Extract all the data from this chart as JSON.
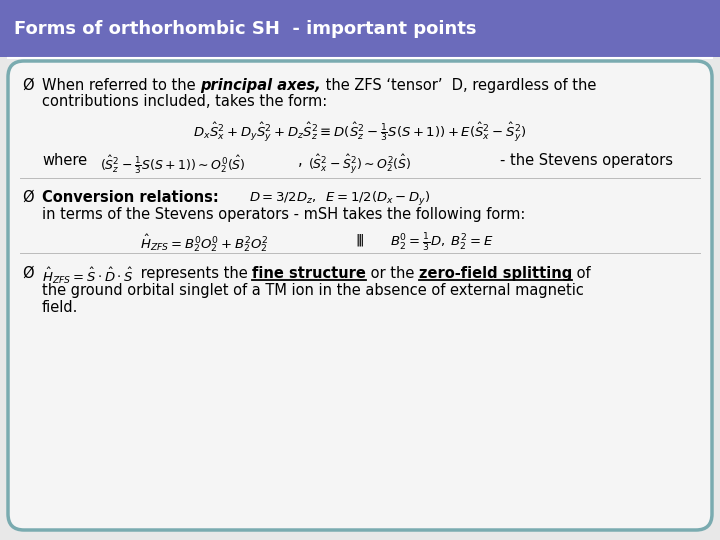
{
  "title": "Forms of orthorhombic SH  - important points",
  "title_bg_color": "#6B6BBB",
  "title_text_color": "#FFFFFF",
  "border_color": "#7AABB0",
  "bg_color": "#E8E8E8",
  "body_bg_color": "#F5F5F5",
  "bullet1_pre": "When referred to the ",
  "bullet1_bold_italic": "principal axes,",
  "bullet1_post": " the ZFS ‘tensor’  D, regardless of the",
  "bullet1_line2": "contributions included, takes the form:",
  "eq1": "$D_x\\hat{S}_x^2 + D_y\\hat{S}_y^2 + D_z\\hat{S}_z^2 \\equiv D(\\hat{S}_z^2 - \\frac{1}{3}S(S+1)) + E(\\hat{S}_x^2 - \\hat{S}_y^2)$",
  "where_label": "where",
  "eq_where1": "$(\\hat{S}_z^2 - \\frac{1}{3}S(S+1)) \\sim O_2^0(\\hat{S})$",
  "eq_where2": "$(\\hat{S}_x^2 - \\hat{S}_y^2) \\sim O_2^2(\\hat{S})$",
  "stevens": "- the Stevens operators",
  "bullet2_bold": "Conversion relations:",
  "bullet2_eq": "$D = 3/2D_z,\\;\\; E = 1/2(D_x - D_y)$",
  "bullet2_line2": "in terms of the Stevens operators - mSH takes the following form:",
  "eq2a": "$\\hat{H}_{ZFS} = B_2^0 O_2^0 + B_2^2 O_2^2$",
  "eq2b": "$B_2^0 = \\frac{1}{3}D,\\; B_2^2 = E$",
  "bullet3_eq": "$\\hat{H}_{ZFS} = \\hat{S} \\cdot \\hat{D} \\cdot \\hat{S}$",
  "bullet3_pre": " represents the ",
  "bullet3_ul1": "fine structure",
  "bullet3_mid": " or the ",
  "bullet3_ul2": "zero-field splitting",
  "bullet3_post": " of",
  "bullet3_line2": "the ground orbital singlet of a TM ion in the absence of external magnetic",
  "bullet3_line3": "field."
}
